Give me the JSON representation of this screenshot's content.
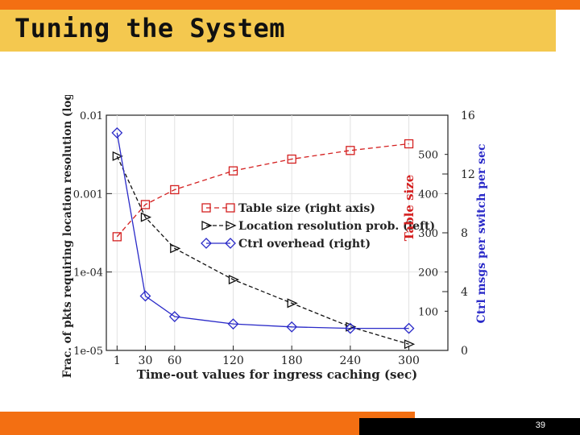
{
  "slide": {
    "title": "Tuning the System",
    "page_number": "39"
  },
  "colors": {
    "title_band": "#f4c84f",
    "accent_orange": "#f36f12",
    "table_size": "#d42020",
    "location": "#111111",
    "ctrl": "#2a2ac8"
  },
  "chart_data": {
    "type": "line",
    "xlabel": "Time-out values for ingress caching (sec)",
    "ylabel_left": "Frac. of pkts requiring location resolution (log)",
    "ylabel_right_table": "Table size",
    "ylabel_right_ctrl": "Ctrl msgs per switch per sec",
    "x": [
      1,
      30,
      60,
      120,
      180,
      240,
      300
    ],
    "x_ticks": [
      "1",
      "30",
      "60",
      "120",
      "180",
      "240",
      "300"
    ],
    "xlim": [
      -10,
      340
    ],
    "left_axis": {
      "scale": "log",
      "ylim": [
        1e-05,
        0.01
      ],
      "ticks": [
        "0.01",
        "0.001",
        "1e-04",
        "1e-05"
      ]
    },
    "right_table_axis": {
      "ylim": [
        0,
        600
      ],
      "ticks": [
        "500",
        "400",
        "300",
        "200",
        "100"
      ]
    },
    "right_ctrl_axis": {
      "ylim": [
        0,
        16
      ],
      "ticks": [
        "16",
        "12",
        "8",
        "4",
        "0"
      ]
    },
    "grid": true,
    "legend_position": "center",
    "series": [
      {
        "name": "Table size (right axis)",
        "axis": "right_table",
        "marker": "square",
        "color": "#d42020",
        "dash": "6,4",
        "values": [
          290,
          372,
          410,
          458,
          488,
          510,
          527
        ]
      },
      {
        "name": "Location resolution prob. (left)",
        "axis": "left",
        "marker": "triangle-right",
        "color": "#111111",
        "dash": "5,3",
        "values": [
          0.003,
          0.0005,
          0.0002,
          8e-05,
          4e-05,
          2e-05,
          1.2e-05
        ]
      },
      {
        "name": "Ctrl overhead (right)",
        "axis": "right_ctrl",
        "marker": "diamond",
        "color": "#2a2ac8",
        "dash": "",
        "values": [
          14.8,
          3.7,
          2.3,
          1.8,
          1.6,
          1.5,
          1.5
        ]
      }
    ]
  }
}
